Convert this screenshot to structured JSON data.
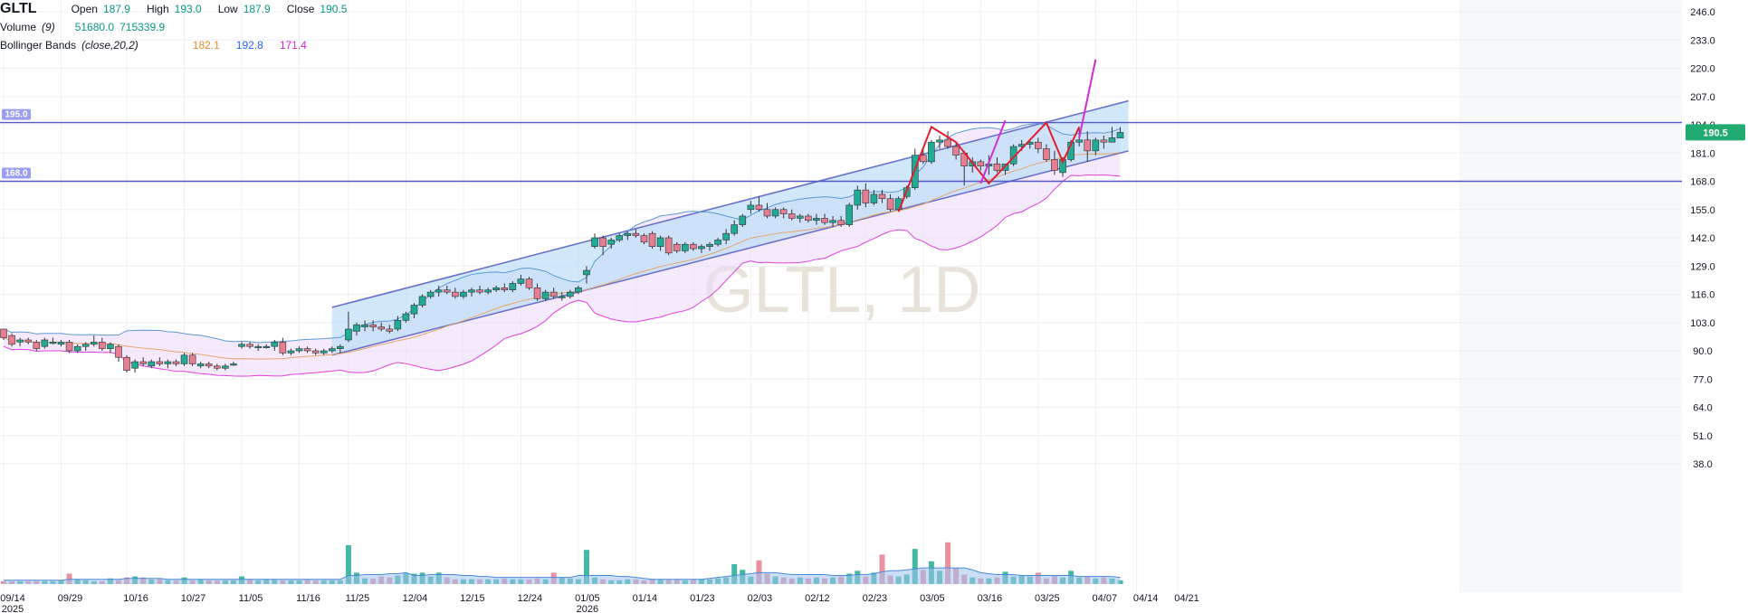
{
  "symbol": "GLTL",
  "legend": {
    "open_label": "Open",
    "open": "187.9",
    "high_label": "High",
    "high": "193.0",
    "low_label": "Low",
    "low": "187.9",
    "close_label": "Close",
    "close": "190.5",
    "volume_label": "Volume",
    "volume_param": "(9)",
    "volume_value": "51680.0",
    "volume_ma": "715339.9",
    "bb_label": "Bollinger Bands",
    "bb_param": "(close,20,2)",
    "bb_basis": "182.1",
    "bb_upper": "192.8",
    "bb_lower": "171.4"
  },
  "watermark": "GLTL, 1D",
  "colors": {
    "up": "#22ab94",
    "down": "#e57e90",
    "grid": "#eef0f3",
    "hline": "#5558c8",
    "channel_fill": "#b8dcf7",
    "bb_fill": "#ecdcfa",
    "bb_upper": "#5b9bd5",
    "bb_lower": "#e040e0",
    "bb_basis": "#e6a66b",
    "pattern_red": "#e01e2e",
    "pattern_magenta": "#d42bd4",
    "last_price": "#22ab70"
  },
  "chart_data": {
    "type": "candlestick",
    "y_axis": {
      "ticks": [
        246.0,
        233.0,
        220.0,
        207.0,
        194.0,
        181.0,
        168.0,
        155.0,
        142.0,
        129.0,
        116.0,
        103.0,
        90.0,
        77.0,
        64.0,
        51.0,
        38.0
      ],
      "tick_labels": [
        "246.0",
        "233.0",
        "220.0",
        "207.0",
        "194.0",
        "181.0",
        "168.0",
        "155.0",
        "142.0",
        "129.0",
        "116.0",
        "103.0",
        "90.0",
        "77.0",
        "64.0",
        "51.0",
        "38.0"
      ],
      "range": [
        30.0,
        255.0
      ]
    },
    "x_axis": {
      "labels": [
        "09/14",
        "09/29",
        "10/16",
        "10/27",
        "11/05",
        "11/16",
        "11/25",
        "12/04",
        "12/15",
        "12/24",
        "01/05",
        "01/14",
        "01/23",
        "02/03",
        "02/12",
        "02/23",
        "03/05",
        "03/16",
        "03/25",
        "04/07",
        "04/14",
        "04/21"
      ],
      "label_index": [
        0,
        7,
        15,
        22,
        29,
        36,
        42,
        49,
        56,
        63,
        70,
        77,
        84,
        91,
        98,
        105,
        112,
        119,
        126,
        133,
        138,
        143
      ],
      "year_labels": [
        {
          "text": "2025",
          "index": 0
        },
        {
          "text": "2026",
          "index": 70
        }
      ]
    },
    "horizontal_lines": [
      {
        "value": 195.0,
        "label": "195.0"
      },
      {
        "value": 168.0,
        "label": "168.0"
      }
    ],
    "last_price": {
      "value": 190.5,
      "label": "190.5"
    },
    "channel": {
      "upper": [
        [
          40,
          110
        ],
        [
          137,
          205
        ]
      ],
      "lower": [
        [
          40,
          88
        ],
        [
          137,
          182
        ]
      ]
    },
    "pattern_red": [
      [
        109,
        154
      ],
      [
        113,
        193
      ],
      [
        116,
        186
      ],
      [
        120,
        167
      ],
      [
        127,
        195
      ],
      [
        129,
        177
      ],
      [
        131,
        193
      ]
    ],
    "pattern_magenta": [
      [
        [
          119,
          167
        ],
        [
          122,
          196
        ]
      ],
      [
        [
          131,
          188
        ],
        [
          133,
          224
        ]
      ]
    ],
    "ohlc": [
      [
        100,
        100,
        95,
        96
      ],
      [
        97,
        98,
        92,
        93
      ],
      [
        94,
        96,
        92,
        95
      ],
      [
        95,
        96,
        93,
        94
      ],
      [
        94,
        95,
        90,
        91
      ],
      [
        92,
        96,
        91,
        95
      ],
      [
        94,
        96,
        93,
        94
      ],
      [
        93,
        95,
        92,
        94
      ],
      [
        94,
        95,
        89,
        90
      ],
      [
        90,
        93,
        89,
        92
      ],
      [
        92,
        94,
        90,
        93
      ],
      [
        93,
        97,
        92,
        94
      ],
      [
        94,
        96,
        90,
        91
      ],
      [
        91,
        94,
        89,
        93
      ],
      [
        92,
        93,
        85,
        87
      ],
      [
        87,
        88,
        80,
        81
      ],
      [
        82,
        86,
        80,
        85
      ],
      [
        85,
        87,
        83,
        84
      ],
      [
        83,
        86,
        82,
        85
      ],
      [
        85,
        87,
        83,
        84
      ],
      [
        84,
        86,
        82,
        85
      ],
      [
        85,
        86,
        83,
        84
      ],
      [
        84,
        89,
        83,
        88
      ],
      [
        88,
        89,
        83,
        84
      ],
      [
        83,
        85,
        82,
        84
      ],
      [
        84,
        85,
        82,
        83
      ],
      [
        83,
        84,
        81,
        82
      ],
      [
        82,
        84,
        81,
        83
      ],
      [
        84,
        85,
        83,
        84
      ],
      [
        92,
        94,
        91,
        93
      ],
      [
        93,
        94,
        91,
        92
      ],
      [
        92,
        93,
        90,
        92
      ],
      [
        92,
        93,
        91,
        92
      ],
      [
        92,
        95,
        90,
        94
      ],
      [
        94,
        96,
        88,
        89
      ],
      [
        89,
        91,
        88,
        90
      ],
      [
        90,
        92,
        89,
        91
      ],
      [
        91,
        92,
        89,
        90
      ],
      [
        90,
        91,
        88,
        89
      ],
      [
        89,
        91,
        88,
        90
      ],
      [
        90,
        92,
        89,
        91
      ],
      [
        91,
        93,
        89,
        92
      ],
      [
        95,
        108,
        94,
        100
      ],
      [
        99,
        103,
        97,
        102
      ],
      [
        101,
        104,
        99,
        102
      ],
      [
        102,
        104,
        99,
        101
      ],
      [
        101,
        103,
        99,
        100
      ],
      [
        100,
        102,
        98,
        99
      ],
      [
        100,
        106,
        99,
        104
      ],
      [
        104,
        108,
        103,
        107
      ],
      [
        107,
        112,
        105,
        111
      ],
      [
        111,
        116,
        110,
        115
      ],
      [
        115,
        118,
        114,
        117
      ],
      [
        117,
        120,
        115,
        118
      ],
      [
        118,
        120,
        116,
        117
      ],
      [
        117,
        119,
        114,
        115
      ],
      [
        115,
        118,
        114,
        117
      ],
      [
        117,
        119,
        115,
        118
      ],
      [
        118,
        120,
        116,
        117
      ],
      [
        117,
        119,
        116,
        118
      ],
      [
        118,
        120,
        117,
        119
      ],
      [
        119,
        121,
        117,
        118
      ],
      [
        118,
        122,
        117,
        121
      ],
      [
        121,
        125,
        120,
        123
      ],
      [
        123,
        124,
        118,
        119
      ],
      [
        119,
        121,
        113,
        114
      ],
      [
        114,
        118,
        113,
        117
      ],
      [
        117,
        119,
        114,
        115
      ],
      [
        115,
        117,
        113,
        115
      ],
      [
        115,
        118,
        114,
        117
      ],
      [
        117,
        120,
        116,
        119
      ],
      [
        125,
        129,
        121,
        127
      ],
      [
        138,
        144,
        137,
        142
      ],
      [
        142,
        143,
        134,
        138
      ],
      [
        139,
        142,
        137,
        141
      ],
      [
        141,
        144,
        140,
        143
      ],
      [
        143,
        145,
        141,
        144
      ],
      [
        144,
        146,
        142,
        143
      ],
      [
        143,
        144,
        139,
        140
      ],
      [
        144,
        145,
        137,
        138
      ],
      [
        138,
        143,
        136,
        142
      ],
      [
        142,
        143,
        134,
        135
      ],
      [
        139,
        140,
        135,
        136
      ],
      [
        136,
        140,
        135,
        139
      ],
      [
        139,
        140,
        136,
        137
      ],
      [
        137,
        139,
        135,
        138
      ],
      [
        138,
        140,
        136,
        139
      ],
      [
        139,
        142,
        138,
        141
      ],
      [
        141,
        146,
        139,
        144
      ],
      [
        144,
        150,
        143,
        148
      ],
      [
        148,
        153,
        147,
        152
      ],
      [
        155,
        159,
        153,
        157
      ],
      [
        157,
        161,
        154,
        155
      ],
      [
        155,
        158,
        151,
        152
      ],
      [
        152,
        156,
        151,
        155
      ],
      [
        155,
        156,
        151,
        153
      ],
      [
        153,
        155,
        150,
        151
      ],
      [
        151,
        153,
        149,
        152
      ],
      [
        152,
        153,
        149,
        150
      ],
      [
        150,
        153,
        148,
        151
      ],
      [
        151,
        153,
        148,
        149
      ],
      [
        149,
        152,
        147,
        150
      ],
      [
        150,
        152,
        147,
        148
      ],
      [
        148,
        158,
        147,
        157
      ],
      [
        157,
        166,
        155,
        164
      ],
      [
        164,
        167,
        156,
        158
      ],
      [
        158,
        164,
        157,
        162
      ],
      [
        162,
        164,
        158,
        160
      ],
      [
        160,
        162,
        154,
        155
      ],
      [
        155,
        161,
        154,
        160
      ],
      [
        161,
        166,
        160,
        165
      ],
      [
        165,
        183,
        164,
        180
      ],
      [
        180,
        183,
        176,
        177
      ],
      [
        177,
        187,
        176,
        186
      ],
      [
        186,
        189,
        183,
        187
      ],
      [
        187,
        191,
        183,
        184
      ],
      [
        184,
        186,
        178,
        180
      ],
      [
        181,
        182,
        166,
        175
      ],
      [
        175,
        179,
        172,
        177
      ],
      [
        177,
        178,
        173,
        175
      ],
      [
        175,
        180,
        171,
        176
      ],
      [
        176,
        179,
        172,
        173
      ],
      [
        173,
        176,
        171,
        176
      ],
      [
        176,
        185,
        175,
        184
      ],
      [
        184,
        187,
        182,
        185
      ],
      [
        185,
        187,
        183,
        186
      ],
      [
        186,
        188,
        181,
        183
      ],
      [
        183,
        185,
        177,
        178
      ],
      [
        178,
        182,
        171,
        173
      ],
      [
        172,
        179,
        170,
        178
      ],
      [
        178,
        187,
        177,
        186
      ],
      [
        186,
        193,
        184,
        187
      ],
      [
        187,
        191,
        177,
        182
      ],
      [
        182,
        188,
        180,
        187
      ],
      [
        187,
        189,
        183,
        186
      ],
      [
        186,
        193,
        186,
        188
      ],
      [
        187.9,
        193.0,
        187.9,
        190.5
      ]
    ],
    "volume": [
      3,
      3,
      3,
      3,
      3,
      3,
      3,
      4,
      11,
      5,
      4,
      3,
      3,
      6,
      4,
      7,
      8,
      7,
      5,
      6,
      4,
      4,
      7,
      4,
      5,
      4,
      4,
      4,
      4,
      8,
      5,
      4,
      5,
      5,
      4,
      4,
      4,
      5,
      4,
      4,
      4,
      4,
      41,
      12,
      6,
      6,
      8,
      7,
      9,
      12,
      11,
      12,
      8,
      12,
      7,
      5,
      5,
      5,
      5,
      5,
      5,
      6,
      5,
      5,
      5,
      6,
      5,
      12,
      7,
      6,
      5,
      36,
      7,
      5,
      4,
      4,
      5,
      5,
      4,
      5,
      5,
      5,
      5,
      4,
      5,
      5,
      5,
      6,
      7,
      21,
      15,
      8,
      25,
      11,
      8,
      7,
      6,
      7,
      6,
      7,
      6,
      7,
      8,
      11,
      14,
      8,
      12,
      31,
      9,
      8,
      10,
      37,
      15,
      24,
      14,
      44,
      17,
      10,
      7,
      6,
      6,
      7,
      13,
      8,
      9,
      8,
      12,
      6,
      9,
      7,
      14,
      7,
      8,
      6,
      7,
      6,
      4
    ],
    "volume_ma": [
      4,
      4,
      4,
      4,
      4,
      4,
      4,
      4,
      5,
      5,
      5,
      5,
      5,
      5,
      5,
      6,
      6,
      6,
      6,
      6,
      5,
      5,
      5,
      5,
      5,
      5,
      5,
      5,
      5,
      5,
      5,
      5,
      5,
      5,
      5,
      5,
      5,
      5,
      5,
      5,
      5,
      5,
      9,
      9,
      10,
      10,
      10,
      11,
      11,
      12,
      9,
      9,
      10,
      10,
      10,
      10,
      9,
      9,
      8,
      8,
      7,
      7,
      7,
      7,
      7,
      7,
      7,
      7,
      7,
      7,
      9,
      9,
      9,
      9,
      9,
      8,
      8,
      7,
      6,
      5,
      5,
      5,
      5,
      5,
      5,
      5,
      6,
      7,
      8,
      9,
      10,
      11,
      12,
      12,
      12,
      11,
      10,
      10,
      10,
      10,
      10,
      9,
      9,
      9,
      10,
      10,
      11,
      13,
      14,
      14,
      15,
      16,
      17,
      17,
      17,
      17,
      17,
      17,
      15,
      12,
      11,
      10,
      10,
      10,
      9,
      9,
      9,
      9,
      9,
      9,
      9,
      8,
      8,
      8,
      8,
      8,
      7
    ]
  }
}
